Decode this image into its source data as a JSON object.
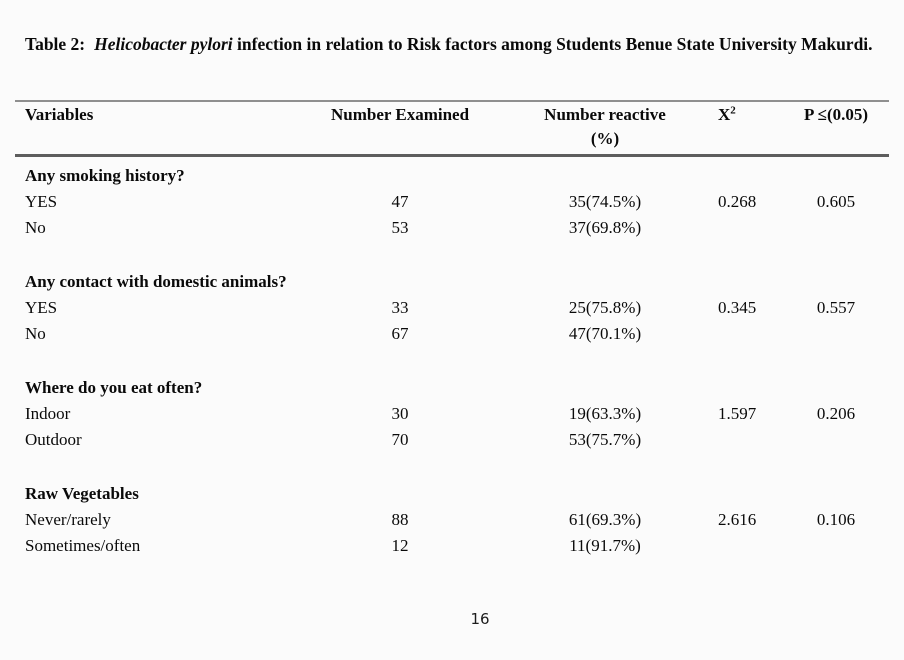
{
  "caption": {
    "prefix": "Table 2:",
    "italic": "Helicobacter pylori",
    "rest": " infection in relation to Risk factors among Students Benue State University Makurdi."
  },
  "table": {
    "columns": [
      {
        "label": "Variables"
      },
      {
        "label": "Number Examined"
      },
      {
        "label": "Number reactive",
        "label_line2": "(%)"
      },
      {
        "label": "X",
        "sup": "2"
      },
      {
        "label": "P ≤(0.05)"
      }
    ],
    "sections": [
      {
        "heading": "Any smoking history?",
        "rows": [
          {
            "variable": "YES",
            "examined": "47",
            "reactive": "35(74.5%)",
            "x2": "0.268",
            "p": "0.605"
          },
          {
            "variable": "No",
            "examined": "53",
            "reactive": "37(69.8%)",
            "x2": "",
            "p": ""
          }
        ]
      },
      {
        "heading": "Any contact with domestic animals?",
        "rows": [
          {
            "variable": "YES",
            "examined": "33",
            "reactive": "25(75.8%)",
            "x2": "0.345",
            "p": "0.557"
          },
          {
            "variable": "No",
            "examined": "67",
            "reactive": "47(70.1%)",
            "x2": "",
            "p": ""
          }
        ]
      },
      {
        "heading": "Where do you eat often?",
        "rows": [
          {
            "variable": "Indoor",
            "examined": "30",
            "reactive": "19(63.3%)",
            "x2": "1.597",
            "p": "0.206"
          },
          {
            "variable": "Outdoor",
            "examined": "70",
            "reactive": "53(75.7%)",
            "x2": "",
            "p": ""
          }
        ]
      },
      {
        "heading": "Raw Vegetables",
        "rows": [
          {
            "variable": "Never/rarely",
            "examined": "88",
            "reactive": "61(69.3%)",
            "x2": "2.616",
            "p": "0.106"
          },
          {
            "variable": "Sometimes/often",
            "examined": "12",
            "reactive": "11(91.7%)",
            "x2": "",
            "p": ""
          }
        ]
      }
    ]
  },
  "page": {
    "number": "16"
  },
  "colors": {
    "background": "#fbfbfb",
    "text": "#0a0a0a",
    "rule_light": "#8f8f8f",
    "rule_dark": "#5d5d5d"
  }
}
